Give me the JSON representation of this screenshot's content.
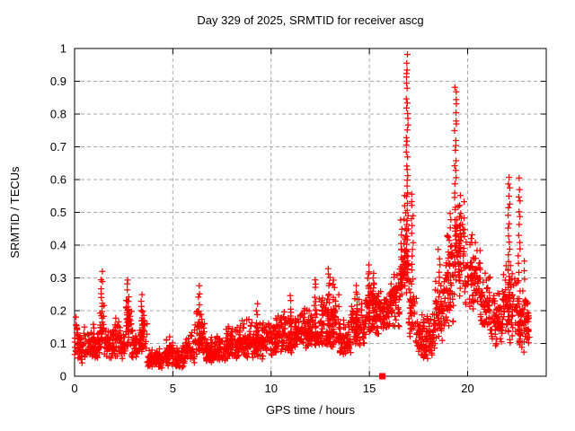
{
  "window": {
    "background": "#ffffff"
  },
  "chart_data": {
    "type": "scatter",
    "title": "Day 329 of 2025, SRMTID for receiver ascg",
    "xlabel": "GPS time / hours",
    "ylabel": "SRMTID / TECUs",
    "xlim": [
      0,
      24
    ],
    "ylim": [
      0,
      1
    ],
    "xticks": [
      0,
      5,
      10,
      15,
      20
    ],
    "xtick_labels": [
      "0",
      "5",
      "10",
      "15",
      "20"
    ],
    "yticks": [
      0,
      0.1,
      0.2,
      0.3,
      0.4,
      0.5,
      0.6,
      0.7,
      0.8,
      0.9,
      1
    ],
    "ytick_labels": [
      "0",
      "0.1",
      "0.2",
      "0.3",
      "0.4",
      "0.5",
      "0.6",
      "0.7",
      "0.8",
      "0.9",
      "1"
    ],
    "grid": true,
    "grid_style": "dashed",
    "legend": false,
    "marker": "plus",
    "marker_color": "#ff0000",
    "series_name": "SRMTID",
    "bands": [
      [
        0.0,
        0.18,
        0.05,
        0.21
      ],
      [
        0.15,
        1.3,
        0.04,
        0.16
      ],
      [
        1.3,
        1.5,
        0.07,
        0.24
      ],
      [
        1.5,
        2.0,
        0.05,
        0.16
      ],
      [
        2.0,
        2.35,
        0.06,
        0.2
      ],
      [
        2.35,
        2.6,
        0.05,
        0.15
      ],
      [
        2.6,
        2.9,
        0.08,
        0.25
      ],
      [
        2.9,
        3.3,
        0.05,
        0.15
      ],
      [
        3.3,
        3.7,
        0.06,
        0.21
      ],
      [
        3.7,
        4.6,
        0.025,
        0.09
      ],
      [
        4.6,
        5.0,
        0.03,
        0.13
      ],
      [
        5.0,
        5.65,
        0.025,
        0.1
      ],
      [
        5.65,
        6.1,
        0.04,
        0.14
      ],
      [
        6.1,
        6.65,
        0.06,
        0.22
      ],
      [
        6.65,
        7.7,
        0.04,
        0.13
      ],
      [
        7.7,
        8.5,
        0.05,
        0.16
      ],
      [
        8.5,
        9.7,
        0.05,
        0.18
      ],
      [
        9.7,
        10.35,
        0.06,
        0.18
      ],
      [
        10.35,
        11.35,
        0.07,
        0.21
      ],
      [
        11.35,
        12.45,
        0.08,
        0.22
      ],
      [
        12.45,
        13.45,
        0.08,
        0.26
      ],
      [
        13.45,
        14.05,
        0.06,
        0.18
      ],
      [
        14.05,
        14.75,
        0.09,
        0.25
      ],
      [
        14.75,
        15.5,
        0.12,
        0.3
      ],
      [
        15.5,
        16.05,
        0.13,
        0.28
      ],
      [
        16.05,
        16.55,
        0.15,
        0.35
      ],
      [
        16.55,
        16.75,
        0.2,
        0.45
      ],
      [
        16.75,
        17.0,
        0.25,
        0.52
      ],
      [
        17.0,
        17.4,
        0.1,
        0.32
      ],
      [
        17.4,
        18.35,
        0.05,
        0.2
      ],
      [
        18.35,
        18.85,
        0.1,
        0.32
      ],
      [
        18.85,
        19.35,
        0.15,
        0.47
      ],
      [
        19.35,
        19.85,
        0.25,
        0.55
      ],
      [
        19.85,
        20.65,
        0.2,
        0.45
      ],
      [
        20.65,
        21.15,
        0.14,
        0.34
      ],
      [
        21.15,
        21.75,
        0.08,
        0.28
      ],
      [
        21.75,
        22.05,
        0.12,
        0.35
      ],
      [
        22.05,
        22.55,
        0.1,
        0.35
      ],
      [
        22.55,
        23.15,
        0.08,
        0.25
      ]
    ],
    "columns": [
      [
        1.38,
        0.12,
        0.315,
        14
      ],
      [
        2.72,
        0.1,
        0.3,
        12
      ],
      [
        3.42,
        0.08,
        0.25,
        10
      ],
      [
        6.35,
        0.08,
        0.27,
        12
      ],
      [
        9.3,
        0.06,
        0.22,
        10
      ],
      [
        11.0,
        0.09,
        0.24,
        10
      ],
      [
        12.25,
        0.1,
        0.3,
        12
      ],
      [
        12.95,
        0.1,
        0.335,
        16
      ],
      [
        13.2,
        0.1,
        0.3,
        12
      ],
      [
        14.35,
        0.1,
        0.28,
        12
      ],
      [
        14.95,
        0.14,
        0.34,
        14
      ],
      [
        15.2,
        0.14,
        0.32,
        12
      ],
      [
        16.62,
        0.25,
        0.47,
        12
      ],
      [
        16.8,
        0.28,
        0.55,
        12
      ],
      [
        16.92,
        0.3,
        0.975,
        40
      ],
      [
        17.18,
        0.28,
        0.56,
        14
      ],
      [
        18.55,
        0.12,
        0.38,
        14
      ],
      [
        19.1,
        0.2,
        0.5,
        12
      ],
      [
        19.38,
        0.3,
        0.885,
        30
      ],
      [
        19.6,
        0.25,
        0.55,
        14
      ],
      [
        22.1,
        0.18,
        0.61,
        22
      ],
      [
        22.62,
        0.1,
        0.6,
        22
      ],
      [
        22.85,
        0.08,
        0.35,
        10
      ]
    ],
    "square_markers": [
      {
        "x": 15.66,
        "y": 0
      }
    ]
  },
  "colors": {
    "points": "#ff0000",
    "grid": "#a9a9a9",
    "axis": "#000000",
    "text": "#000000",
    "background": "#ffffff"
  }
}
